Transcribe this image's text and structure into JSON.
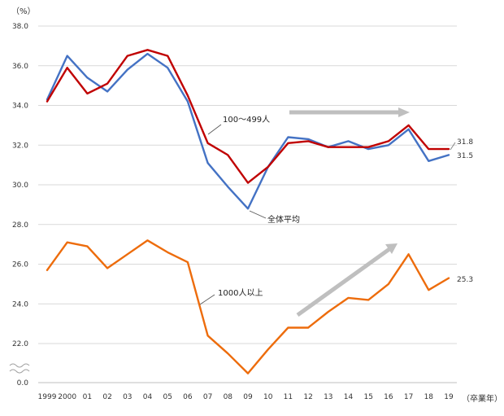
{
  "chart_data": {
    "type": "line",
    "unit_label": "（%）",
    "x_axis_title": "（卒業年）",
    "categories": [
      "1999",
      "2000",
      "01",
      "02",
      "03",
      "04",
      "05",
      "06",
      "07",
      "08",
      "09",
      "10",
      "11",
      "12",
      "13",
      "14",
      "15",
      "16",
      "17",
      "18",
      "19"
    ],
    "y_ticks": [
      "38.0",
      "36.0",
      "34.0",
      "32.0",
      "30.0",
      "28.0",
      "26.0",
      "24.0",
      "22.0",
      "0.0"
    ],
    "ylim_upper": [
      22,
      38
    ],
    "axis_break_between": [
      0,
      22
    ],
    "series": [
      {
        "name": "全体平均",
        "color": "#4472C4",
        "values": [
          34.3,
          36.5,
          35.4,
          34.7,
          35.8,
          36.6,
          35.9,
          34.2,
          31.1,
          29.9,
          28.8,
          30.9,
          32.4,
          32.3,
          31.9,
          32.2,
          31.8,
          32.0,
          32.8,
          31.2,
          31.5
        ],
        "end_label": "31.5"
      },
      {
        "name": "100〜499人",
        "color": "#C00000",
        "values": [
          34.2,
          35.9,
          34.6,
          35.1,
          36.5,
          36.8,
          36.5,
          34.5,
          32.1,
          31.5,
          30.1,
          30.9,
          32.1,
          32.2,
          31.9,
          31.9,
          31.9,
          32.2,
          33.0,
          31.8,
          31.8
        ],
        "end_label": "31.8"
      },
      {
        "name": "1000人以上",
        "color": "#ED6C0C",
        "values": [
          25.7,
          27.1,
          26.9,
          25.8,
          26.5,
          27.2,
          26.6,
          26.1,
          22.4,
          21.5,
          20.5,
          21.7,
          22.8,
          22.8,
          23.6,
          24.3,
          24.2,
          25.0,
          26.5,
          24.7,
          25.3
        ],
        "end_label": "25.3"
      }
    ],
    "annotations": {
      "flat_arrow": "horizontal trend arrow, 2011–2017",
      "rising_arrow": "upward trend arrow, 2011–2017"
    },
    "grid": "horizontal",
    "legend": "inline callout labels"
  }
}
